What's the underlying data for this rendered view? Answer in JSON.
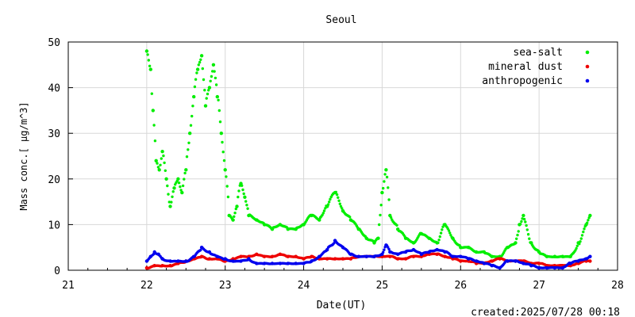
{
  "chart_data": {
    "type": "scatter",
    "title": "Seoul",
    "xlabel": "Date(UT)",
    "ylabel": "Mass conc.[ μg/m^3]",
    "xlim": [
      21,
      28
    ],
    "ylim": [
      0,
      50
    ],
    "x_ticks": [
      "21",
      "22",
      "23",
      "24",
      "25",
      "26",
      "27",
      "28"
    ],
    "y_ticks": [
      "0",
      "10",
      "20",
      "30",
      "40",
      "50"
    ],
    "grid": true,
    "legend_position": "top-right",
    "footer": "created:2025/07/28 00:18",
    "series": [
      {
        "name": "sea-salt",
        "color": "#00ee00",
        "x": [
          22.0,
          22.05,
          22.08,
          22.12,
          22.16,
          22.2,
          22.25,
          22.3,
          22.35,
          22.4,
          22.45,
          22.5,
          22.55,
          22.6,
          22.65,
          22.7,
          22.75,
          22.8,
          22.85,
          22.9,
          22.95,
          23.0,
          23.05,
          23.1,
          23.15,
          23.2,
          23.25,
          23.3,
          23.4,
          23.5,
          23.6,
          23.7,
          23.8,
          23.9,
          24.0,
          24.1,
          24.2,
          24.3,
          24.4,
          24.5,
          24.6,
          24.7,
          24.8,
          24.9,
          24.95,
          25.0,
          25.05,
          25.1,
          25.2,
          25.3,
          25.4,
          25.5,
          25.6,
          25.7,
          25.8,
          25.9,
          26.0,
          26.1,
          26.2,
          26.3,
          26.4,
          26.5,
          26.6,
          26.7,
          26.75,
          26.8,
          26.9,
          27.0,
          27.1,
          27.2,
          27.3,
          27.4,
          27.5,
          27.6,
          27.65
        ],
        "y": [
          48,
          44,
          35,
          24,
          22,
          26,
          20,
          14,
          18,
          20,
          17,
          22,
          30,
          38,
          44,
          47,
          36,
          40,
          45,
          38,
          30,
          22,
          12,
          11,
          14,
          19,
          16,
          12,
          11,
          10,
          9,
          10,
          9,
          9,
          10,
          12,
          11,
          14,
          17,
          13,
          11,
          9,
          7,
          6,
          7,
          17,
          22,
          12,
          9,
          7,
          6,
          8,
          7,
          6,
          10,
          7,
          5,
          5,
          4,
          4,
          3,
          3,
          5,
          6,
          10,
          12,
          6,
          4,
          3,
          3,
          3,
          3,
          6,
          10,
          12
        ]
      },
      {
        "name": "mineral dust",
        "color": "#ee0000",
        "x": [
          22.0,
          22.1,
          22.2,
          22.3,
          22.4,
          22.5,
          22.6,
          22.7,
          22.8,
          22.9,
          23.0,
          23.1,
          23.2,
          23.3,
          23.4,
          23.5,
          23.6,
          23.7,
          23.8,
          23.9,
          24.0,
          24.1,
          24.2,
          24.3,
          24.4,
          24.5,
          24.6,
          24.7,
          24.8,
          24.9,
          25.0,
          25.1,
          25.2,
          25.3,
          25.4,
          25.5,
          25.6,
          25.7,
          25.8,
          25.9,
          26.0,
          26.1,
          26.2,
          26.3,
          26.4,
          26.5,
          26.6,
          26.7,
          26.8,
          26.9,
          27.0,
          27.1,
          27.2,
          27.3,
          27.4,
          27.5,
          27.6,
          27.65
        ],
        "y": [
          0.5,
          1,
          1,
          1,
          1.5,
          2,
          2.5,
          3,
          2.5,
          2.5,
          2,
          2.5,
          3,
          3,
          3.5,
          3,
          3,
          3.5,
          3,
          3,
          2.5,
          3,
          2.5,
          2.5,
          2.5,
          2.5,
          2.5,
          3,
          3,
          3,
          3,
          3,
          2.5,
          2.5,
          3,
          3,
          3.5,
          3.5,
          3,
          2.5,
          2,
          2,
          1.5,
          1.5,
          2,
          2.5,
          2,
          2,
          2,
          1.5,
          1.5,
          1,
          1,
          1,
          1,
          1.5,
          2,
          2
        ]
      },
      {
        "name": "anthropogenic",
        "color": "#0000ee",
        "x": [
          22.0,
          22.05,
          22.1,
          22.15,
          22.2,
          22.3,
          22.4,
          22.5,
          22.6,
          22.7,
          22.8,
          22.9,
          23.0,
          23.1,
          23.2,
          23.3,
          23.4,
          23.5,
          23.6,
          23.7,
          23.8,
          23.9,
          24.0,
          24.1,
          24.2,
          24.3,
          24.4,
          24.5,
          24.6,
          24.7,
          24.8,
          24.9,
          25.0,
          25.05,
          25.1,
          25.2,
          25.3,
          25.4,
          25.5,
          25.6,
          25.7,
          25.8,
          25.9,
          26.0,
          26.1,
          26.2,
          26.3,
          26.4,
          26.5,
          26.6,
          26.7,
          26.8,
          26.9,
          27.0,
          27.1,
          27.2,
          27.3,
          27.4,
          27.5,
          27.6,
          27.65
        ],
        "y": [
          2,
          3,
          4,
          3.5,
          2.5,
          2,
          2,
          2,
          3,
          5,
          4,
          3,
          2.5,
          2,
          2,
          2.5,
          1.5,
          1.5,
          1.5,
          1.5,
          1.5,
          1.5,
          1.5,
          2,
          3,
          4.5,
          6.5,
          5,
          3.5,
          3,
          3,
          3,
          3.5,
          5.5,
          4,
          3.5,
          4,
          4.5,
          3.5,
          4,
          4.5,
          4,
          3,
          3,
          2.5,
          2,
          1.5,
          1,
          0.5,
          2,
          2,
          1.5,
          1,
          0.5,
          0.5,
          0.5,
          0.5,
          1.5,
          2,
          2.5,
          3
        ]
      }
    ]
  }
}
